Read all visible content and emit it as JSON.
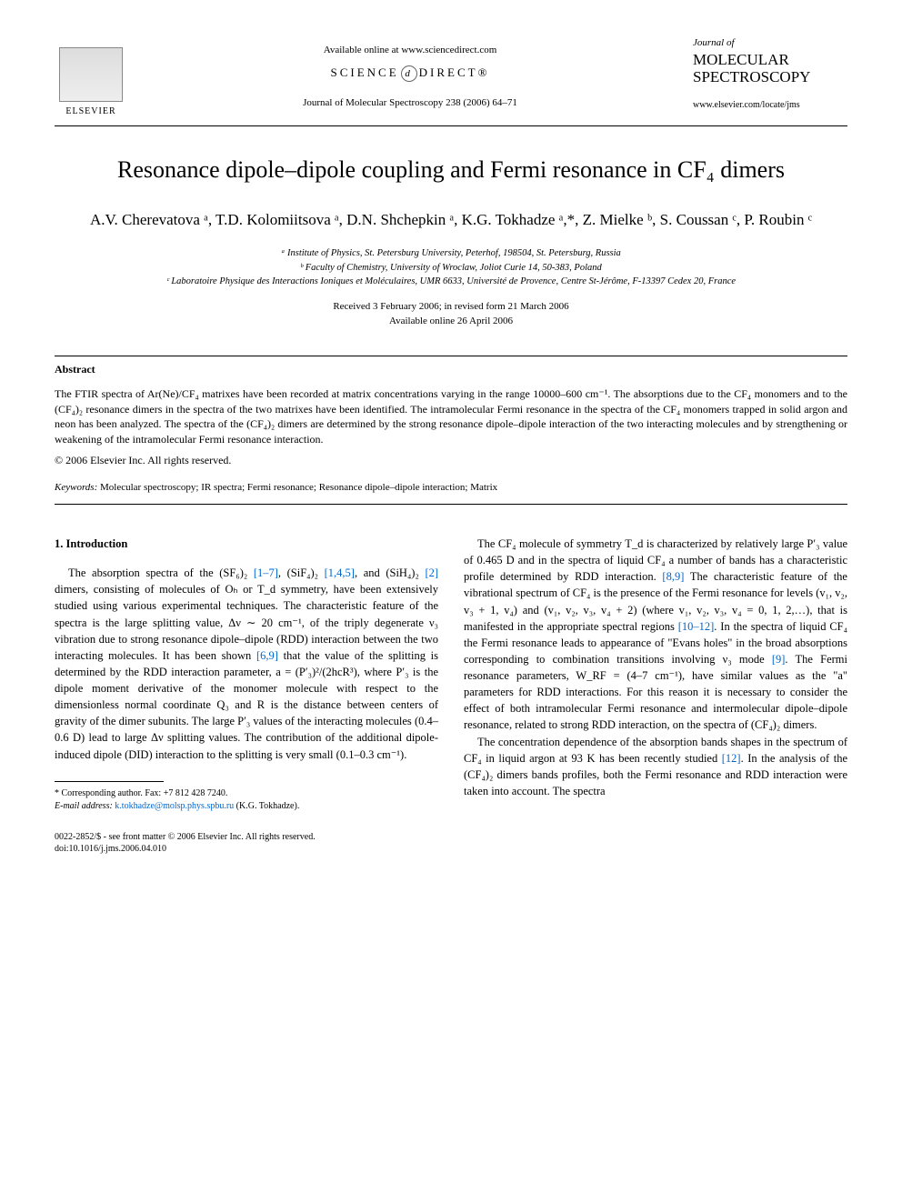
{
  "header": {
    "available_online": "Available online at www.sciencedirect.com",
    "science_direct_left": "SCIENCE",
    "science_direct_mid": "d",
    "science_direct_right": "DIRECT®",
    "journal_ref": "Journal of Molecular Spectroscopy 238 (2006) 64–71",
    "elsevier_label": "ELSEVIER",
    "journal_of": "Journal of",
    "journal_name": "MOLECULAR SPECTROSCOPY",
    "journal_url": "www.elsevier.com/locate/jms"
  },
  "title": "Resonance dipole–dipole coupling and Fermi resonance in CF₄ dimers",
  "authors": "A.V. Cherevatova ᵃ, T.D. Kolomiitsova ᵃ, D.N. Shchepkin ᵃ, K.G. Tokhadze ᵃ,*, Z. Mielke ᵇ, S. Coussan ᶜ, P. Roubin ᶜ",
  "affiliations": {
    "a": "ᵃ Institute of Physics, St. Petersburg University, Peterhof, 198504, St. Petersburg, Russia",
    "b": "ᵇ Faculty of Chemistry, University of Wroclaw, Joliot Curie 14, 50-383, Poland",
    "c": "ᶜ Laboratoire Physique des Interactions Ioniques et Moléculaires, UMR 6633, Université de Provence, Centre St-Jérôme, F-13397 Cedex 20, France"
  },
  "dates": {
    "received": "Received 3 February 2006; in revised form 21 March 2006",
    "online": "Available online 26 April 2006"
  },
  "abstract": {
    "heading": "Abstract",
    "text": "The FTIR spectra of Ar(Ne)/CF₄ matrixes have been recorded at matrix concentrations varying in the range 10000–600 cm⁻¹. The absorptions due to the CF₄ monomers and to the (CF₄)₂ resonance dimers in the spectra of the two matrixes have been identified. The intramolecular Fermi resonance in the spectra of the CF₄ monomers trapped in solid argon and neon has been analyzed. The spectra of the (CF₄)₂ dimers are determined by the strong resonance dipole–dipole interaction of the two interacting molecules and by strengthening or weakening of the intramolecular Fermi resonance interaction.",
    "copyright": "© 2006 Elsevier Inc. All rights reserved."
  },
  "keywords": {
    "label": "Keywords:",
    "text": " Molecular spectroscopy; IR spectra; Fermi resonance; Resonance dipole–dipole interaction; Matrix"
  },
  "intro": {
    "heading": "1. Introduction",
    "p1_a": "The absorption spectra of the (SF₆)₂ ",
    "p1_ref1": "[1–7]",
    "p1_b": ", (SiF₄)₂ ",
    "p1_ref2": "[1,4,5]",
    "p1_c": ", and (SiH₄)₂ ",
    "p1_ref3": "[2]",
    "p1_d": " dimers, consisting of molecules of Oₕ or T_d symmetry, have been extensively studied using various experimental techniques. The characteristic feature of the spectra is the large splitting value, Δν ∼ 20 cm⁻¹, of the triply degenerate ν₃ vibration due to strong resonance dipole–dipole (RDD) interaction between the two interacting molecules. It has been shown ",
    "p1_ref4": "[6,9]",
    "p1_e": " that the value of the splitting is determined by the RDD interaction parameter, a = (P′₃)²/(2hcR³), where P′₃ is the dipole moment derivative of the monomer molecule with respect to the dimensionless normal coordinate Q₃ and R is the distance between centers of gravity of the dimer subunits. The large P′₃ values of the interacting molecules (0.4–0.6 D) lead to large Δν splitting values. The contribution of the additional dipole-induced dipole (DID) interaction to the splitting is very small (0.1–0.3 cm⁻¹).",
    "p2_a": "The CF₄ molecule of symmetry T_d is characterized by relatively large P′₃ value of 0.465 D and in the spectra of liquid CF₄ a number of bands has a characteristic profile determined by RDD interaction. ",
    "p2_ref1": "[8,9]",
    "p2_b": " The characteristic feature of the vibrational spectrum of CF₄ is the presence of the Fermi resonance for levels (v₁, v₂, v₃ + 1, v₄) and (v₁, v₂, v₃, v₄ + 2) (where v₁, v₂, v₃, v₄ = 0, 1, 2,…), that is manifested in the appropriate spectral regions ",
    "p2_ref2": "[10–12]",
    "p2_c": ". In the spectra of liquid CF₄ the Fermi resonance leads to appearance of \"Evans holes\" in the broad absorptions corresponding to combination transitions involving ν₃ mode ",
    "p2_ref3": "[9]",
    "p2_d": ". The Fermi resonance parameters, W_RF = (4–7 cm⁻¹), have similar values as the \"a\" parameters for RDD interactions. For this reason it is necessary to consider the effect of both intramolecular Fermi resonance and intermolecular dipole–dipole resonance, related to strong RDD interaction, on the spectra of (CF₄)₂ dimers.",
    "p3_a": "The concentration dependence of the absorption bands shapes in the spectrum of CF₄ in liquid argon at 93 K has been recently studied ",
    "p3_ref1": "[12]",
    "p3_b": ". In the analysis of the (CF₄)₂ dimers bands profiles, both the Fermi resonance and RDD interaction were taken into account. The spectra"
  },
  "footnote": {
    "corresponding": "* Corresponding author. Fax: +7 812 428 7240.",
    "email_label": "E-mail address:",
    "email": " k.tokhadze@molsp.phys.spbu.ru",
    "email_suffix": " (K.G. Tokhadze)."
  },
  "footer": {
    "line1": "0022-2852/$ - see front matter © 2006 Elsevier Inc. All rights reserved.",
    "line2": "doi:10.1016/j.jms.2006.04.010"
  }
}
